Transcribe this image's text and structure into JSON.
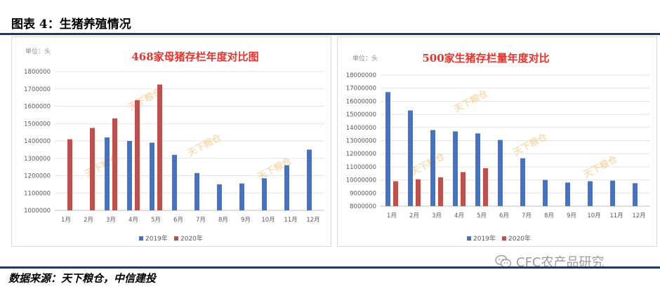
{
  "header": {
    "label": "图表 4：生猪养殖情况"
  },
  "source": "数据来源：天下粮仓，中信建投",
  "account": "CFC农产品研究",
  "watermark": "天下粮仓",
  "colors": {
    "y2019": "#4472c4",
    "y2020": "#c0504d",
    "title": "#e8332b",
    "rule": "#1f3864"
  },
  "chart_data": [
    {
      "type": "bar",
      "title": "468家母猪存栏年度对比图",
      "unit_label": "单位：头",
      "categories": [
        "1月",
        "2月",
        "3月",
        "4月",
        "5月",
        "6月",
        "7月",
        "8月",
        "9月",
        "10月",
        "11月",
        "12月"
      ],
      "ylim": [
        1000000,
        1800000
      ],
      "yticks": [
        1000000,
        1100000,
        1200000,
        1300000,
        1400000,
        1500000,
        1600000,
        1700000,
        1800000
      ],
      "ytick_labels": [
        "1000000",
        "1100000",
        "1200000",
        "1300000",
        "1400000",
        "1500000",
        "1600000",
        "1700000",
        "1800000"
      ],
      "grid": true,
      "legend_position": "bottom",
      "series": [
        {
          "name": "2019年",
          "values": [
            null,
            null,
            1420000,
            1400000,
            1390000,
            1320000,
            1215000,
            1150000,
            1155000,
            1185000,
            1260000,
            1350000
          ]
        },
        {
          "name": "2020年",
          "values": [
            1410000,
            1475000,
            1530000,
            1635000,
            1725000,
            null,
            null,
            null,
            null,
            null,
            null,
            null
          ]
        }
      ]
    },
    {
      "type": "bar",
      "title": "500家生猪存栏量年度对比",
      "unit_label": "单位：头",
      "categories": [
        "1月",
        "2月",
        "3月",
        "4月",
        "5月",
        "6月",
        "7月",
        "8月",
        "9月",
        "10月",
        "11月",
        "12月"
      ],
      "ylim": [
        8000000,
        18000000
      ],
      "yticks": [
        8000000,
        9000000,
        10000000,
        11000000,
        12000000,
        13000000,
        14000000,
        15000000,
        16000000,
        17000000,
        18000000
      ],
      "ytick_labels": [
        "8000000",
        "9000000",
        "10000000",
        "11000000",
        "12000000",
        "13000000",
        "14000000",
        "15000000",
        "16000000",
        "17000000",
        "18000000"
      ],
      "grid": true,
      "legend_position": "bottom",
      "series": [
        {
          "name": "2019年",
          "values": [
            16700000,
            15300000,
            13800000,
            13700000,
            13550000,
            13050000,
            11650000,
            10000000,
            9800000,
            9900000,
            9950000,
            9750000
          ]
        },
        {
          "name": "2020年",
          "values": [
            9900000,
            10050000,
            10200000,
            10600000,
            10900000,
            null,
            null,
            null,
            null,
            null,
            null,
            null
          ]
        }
      ]
    }
  ]
}
